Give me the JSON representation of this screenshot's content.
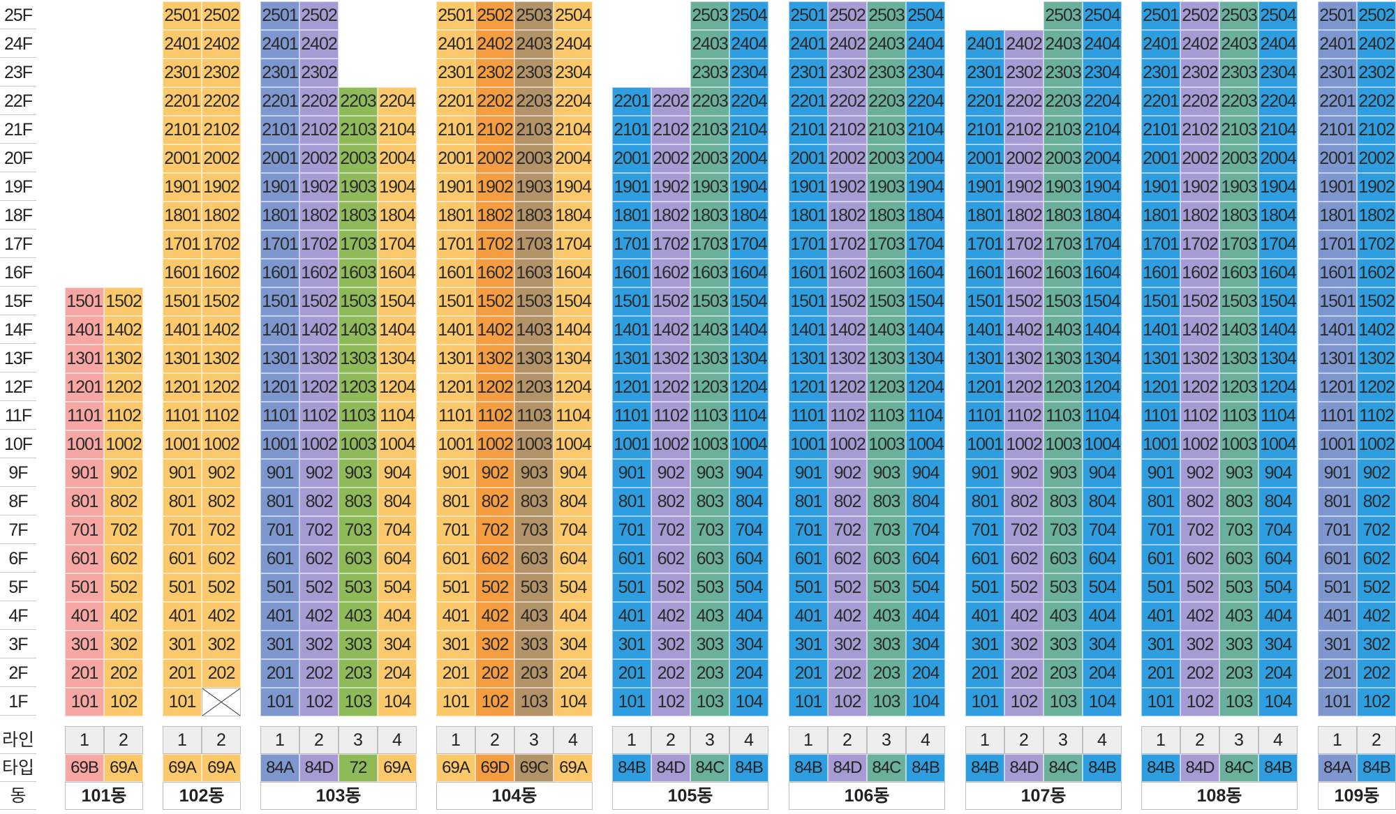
{
  "floors": [
    "25F",
    "24F",
    "23F",
    "22F",
    "21F",
    "20F",
    "19F",
    "18F",
    "17F",
    "16F",
    "15F",
    "14F",
    "13F",
    "12F",
    "11F",
    "10F",
    "9F",
    "8F",
    "7F",
    "6F",
    "5F",
    "4F",
    "3F",
    "2F",
    "1F"
  ],
  "row_labels": {
    "line": "라인",
    "type": "타입",
    "building": "동"
  },
  "type_colors": {
    "69A": "#fbc96b",
    "69B": "#f6a7a3",
    "69C": "#b39468",
    "69D": "#f59d41",
    "72": "#8fba5a",
    "84A": "#7e97cf",
    "84B": "#2f9ee0",
    "84C": "#6bb09c",
    "84D": "#a89bd4"
  },
  "buildings": [
    {
      "name": "101동",
      "lines": [
        {
          "no": "1",
          "type": "69B",
          "max": 15
        },
        {
          "no": "2",
          "type": "69A",
          "max": 15
        }
      ]
    },
    {
      "name": "102동",
      "lines": [
        {
          "no": "1",
          "type": "69A",
          "max": 25
        },
        {
          "no": "2",
          "type": "69A",
          "max": 25,
          "empty": [
            1
          ]
        }
      ]
    },
    {
      "name": "103동",
      "lines": [
        {
          "no": "1",
          "type": "84A",
          "max": 25
        },
        {
          "no": "2",
          "type": "84D",
          "max": 25
        },
        {
          "no": "3",
          "type": "72",
          "max": 22
        },
        {
          "no": "4",
          "type": "69A",
          "max": 22
        }
      ]
    },
    {
      "name": "104동",
      "lines": [
        {
          "no": "1",
          "type": "69A",
          "max": 25
        },
        {
          "no": "2",
          "type": "69D",
          "max": 25
        },
        {
          "no": "3",
          "type": "69C",
          "max": 25
        },
        {
          "no": "4",
          "type": "69A",
          "max": 25
        }
      ]
    },
    {
      "name": "105동",
      "lines": [
        {
          "no": "1",
          "type": "84B",
          "max": 22
        },
        {
          "no": "2",
          "type": "84D",
          "max": 22
        },
        {
          "no": "3",
          "type": "84C",
          "max": 25
        },
        {
          "no": "4",
          "type": "84B",
          "max": 25
        }
      ]
    },
    {
      "name": "106동",
      "lines": [
        {
          "no": "1",
          "type": "84B",
          "max": 25
        },
        {
          "no": "2",
          "type": "84D",
          "max": 25
        },
        {
          "no": "3",
          "type": "84C",
          "max": 25
        },
        {
          "no": "4",
          "type": "84B",
          "max": 25
        }
      ]
    },
    {
      "name": "107동",
      "lines": [
        {
          "no": "1",
          "type": "84B",
          "max": 24
        },
        {
          "no": "2",
          "type": "84D",
          "max": 24
        },
        {
          "no": "3",
          "type": "84C",
          "max": 25
        },
        {
          "no": "4",
          "type": "84B",
          "max": 25
        }
      ]
    },
    {
      "name": "108동",
      "lines": [
        {
          "no": "1",
          "type": "84B",
          "max": 25
        },
        {
          "no": "2",
          "type": "84D",
          "max": 25
        },
        {
          "no": "3",
          "type": "84C",
          "max": 25
        },
        {
          "no": "4",
          "type": "84B",
          "max": 25
        }
      ]
    },
    {
      "name": "109동",
      "lines": [
        {
          "no": "1",
          "type": "84A",
          "max": 25
        },
        {
          "no": "2",
          "type": "84B",
          "max": 25
        }
      ]
    }
  ]
}
